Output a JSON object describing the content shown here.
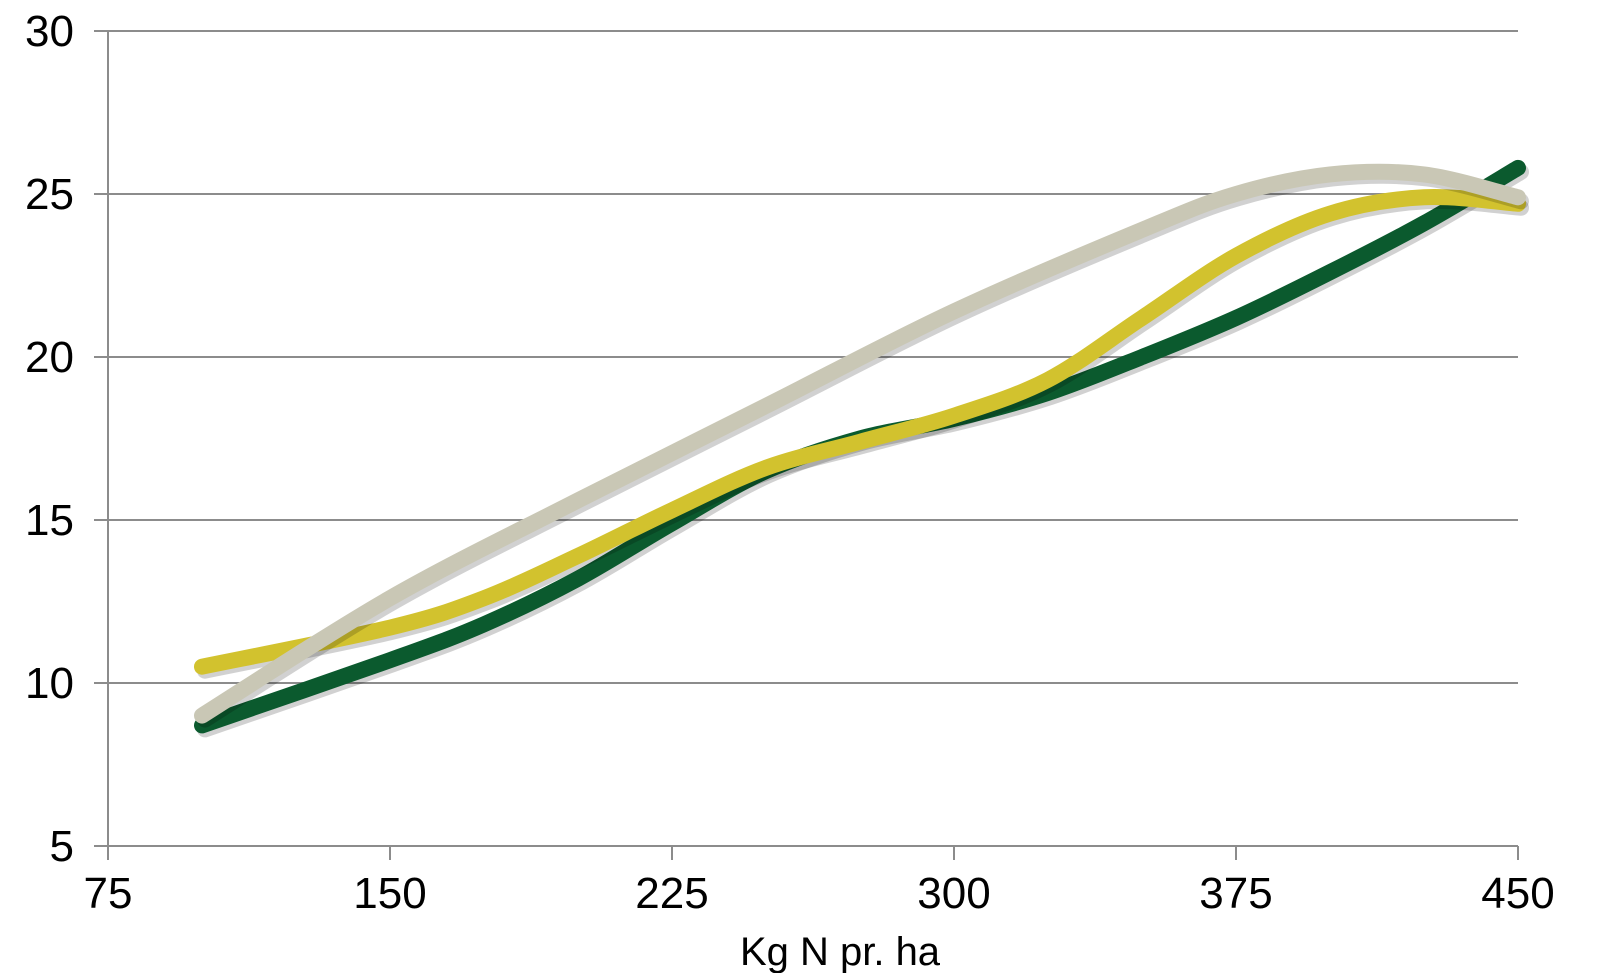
{
  "chart_data": {
    "type": "line",
    "title": "",
    "xlabel": "Kg N pr. ha",
    "ylabel": "",
    "xlim": [
      75,
      450
    ],
    "ylim": [
      5,
      30
    ],
    "x_ticks": [
      75,
      150,
      225,
      300,
      375,
      450
    ],
    "y_ticks": [
      5,
      10,
      15,
      20,
      25,
      30
    ],
    "grid": true,
    "legend": "none",
    "series": [
      {
        "color": "#0b5a2e",
        "x": [
          100,
          150,
          175,
          200,
          225,
          250,
          275,
          300,
          325,
          350,
          375,
          400,
          425,
          450
        ],
        "values": [
          8.7,
          10.7,
          11.8,
          13.2,
          14.9,
          16.5,
          17.5,
          18.1,
          18.9,
          20.0,
          21.2,
          22.6,
          24.1,
          25.8
        ]
      },
      {
        "color": "#d2c22e",
        "x": [
          100,
          150,
          175,
          200,
          225,
          250,
          275,
          300,
          325,
          350,
          375,
          400,
          425,
          450
        ],
        "values": [
          10.5,
          11.7,
          12.6,
          13.9,
          15.3,
          16.6,
          17.4,
          18.2,
          19.3,
          21.2,
          23.1,
          24.4,
          24.9,
          24.7
        ]
      },
      {
        "color": "#c9c7b5",
        "x": [
          100,
          150,
          200,
          250,
          300,
          350,
          375,
          400,
          425,
          450
        ],
        "values": [
          9.0,
          12.6,
          15.6,
          18.5,
          21.4,
          23.9,
          25.0,
          25.6,
          25.6,
          24.9
        ]
      }
    ]
  }
}
